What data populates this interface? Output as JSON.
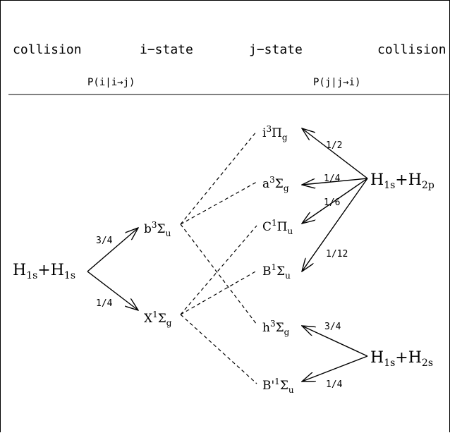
{
  "header": {
    "collision_left": "collision",
    "i_state": "i−state",
    "j_state": "j−state",
    "collision_right": "collision",
    "prob_left": "P(i|i→j)",
    "prob_right": "P(j|j→i)"
  },
  "left_collision": {
    "a": "H",
    "a_sub": "1s",
    "plus": "+",
    "b": "H",
    "b_sub": "1s"
  },
  "i_states": [
    {
      "main": "b",
      "sup": "3",
      "sym": "Σ",
      "sub": "u"
    },
    {
      "main": "X",
      "sup": "1",
      "sym": "Σ",
      "sub": "g"
    }
  ],
  "j_states": [
    {
      "main": "i",
      "sup": "3",
      "sym": "Π",
      "sub": "g"
    },
    {
      "main": "a",
      "sup": "3",
      "sym": "Σ",
      "sub": "g"
    },
    {
      "main": "C",
      "sup": "1",
      "sym": "Π",
      "sub": "u"
    },
    {
      "main": "B",
      "sup": "1",
      "sym": "Σ",
      "sub": "u"
    },
    {
      "main": "h",
      "sup": "3",
      "sym": "Σ",
      "sub": "g"
    },
    {
      "main": "B'",
      "sup": "1",
      "sym": "Σ",
      "sub": "u"
    }
  ],
  "right_collisions": [
    {
      "a": "H",
      "a_sub": "1s",
      "plus": "+",
      "b": "H",
      "b_sub": "2p"
    },
    {
      "a": "H",
      "a_sub": "1s",
      "plus": "+",
      "b": "H",
      "b_sub": "2s"
    }
  ],
  "left_probs": [
    "3/4",
    "1/4"
  ],
  "right_probs_2p": [
    "1/2",
    "1/4",
    "1/6",
    "1/12"
  ],
  "right_probs_2s": [
    "3/4",
    "1/4"
  ]
}
